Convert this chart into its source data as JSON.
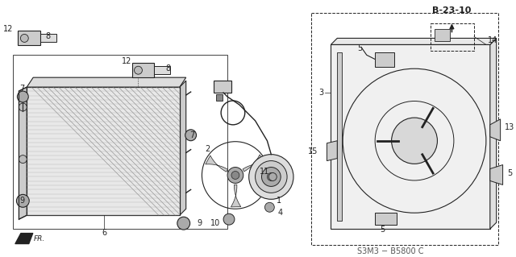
{
  "bg_color": "#ffffff",
  "diagram_code": "B-23-10",
  "part_number": "S3M3 − B5800 C",
  "fig_width": 6.4,
  "fig_height": 3.19,
  "gray": "#222222",
  "lgray": "#999999",
  "mgray": "#666666"
}
